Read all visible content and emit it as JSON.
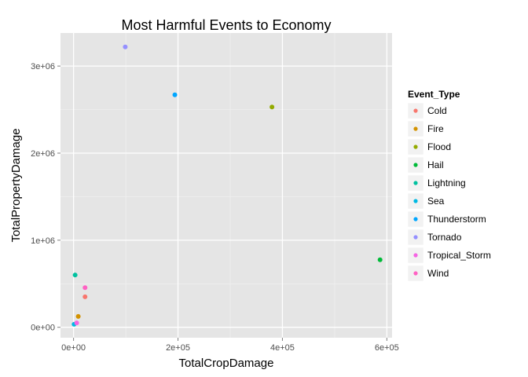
{
  "chart_data": {
    "type": "scatter",
    "title": "Most Harmful Events to Economy",
    "xlabel": "TotalCropDamage",
    "ylabel": "TotalPropertyDamage",
    "xlim": [
      -25000,
      610000
    ],
    "ylim": [
      -120000,
      3380000
    ],
    "x_ticks": [
      0,
      200000,
      400000,
      600000
    ],
    "x_tick_labels": [
      "0e+00",
      "2e+05",
      "4e+05",
      "6e+05"
    ],
    "y_ticks": [
      0,
      1000000,
      2000000,
      3000000
    ],
    "y_tick_labels": [
      "0e+00",
      "1e+06",
      "2e+06",
      "3e+06"
    ],
    "grid": true,
    "legend_title": "Event_Type",
    "legend_position": "right",
    "series": [
      {
        "name": "Cold",
        "color": "#F8766D",
        "x": 22000,
        "y": 350000
      },
      {
        "name": "Fire",
        "color": "#D39200",
        "x": 9000,
        "y": 125000
      },
      {
        "name": "Flood",
        "color": "#93AA00",
        "x": 380000,
        "y": 2530000
      },
      {
        "name": "Hail",
        "color": "#00BA38",
        "x": 587000,
        "y": 775000
      },
      {
        "name": "Lightning",
        "color": "#00C19F",
        "x": 3000,
        "y": 600000
      },
      {
        "name": "Sea",
        "color": "#00B9E3",
        "x": 1000,
        "y": 35000
      },
      {
        "name": "Thunderstorm",
        "color": "#00A6FF",
        "x": 194000,
        "y": 2670000
      },
      {
        "name": "Tornado",
        "color": "#9590FF",
        "x": 99000,
        "y": 3220000
      },
      {
        "name": "Tropical_Storm",
        "color": "#F564E3",
        "x": 6000,
        "y": 50000
      },
      {
        "name": "Wind",
        "color": "#FF61C3",
        "x": 22000,
        "y": 455000
      }
    ]
  }
}
